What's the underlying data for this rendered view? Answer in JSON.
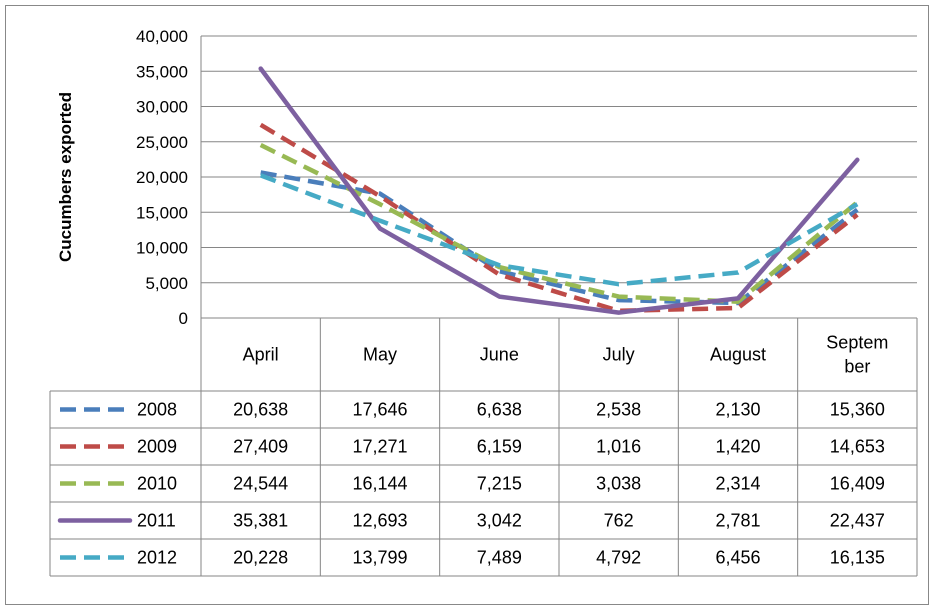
{
  "chart_data": {
    "type": "line",
    "ylabel": "Cucumbers exported",
    "ylim": [
      0,
      40000
    ],
    "y_ticks": [
      "0",
      "5,000",
      "10,000",
      "15,000",
      "20,000",
      "25,000",
      "30,000",
      "35,000",
      "40,000"
    ],
    "y_tick_values": [
      0,
      5000,
      10000,
      15000,
      20000,
      25000,
      30000,
      35000,
      40000
    ],
    "categories": [
      "April",
      "May",
      "June",
      "July",
      "August",
      "September"
    ],
    "category_lines": [
      [
        "April"
      ],
      [
        "May"
      ],
      [
        "June"
      ],
      [
        "July"
      ],
      [
        "August"
      ],
      [
        "Septem",
        "ber"
      ]
    ],
    "grid": true,
    "legend_placement": "data table below plot",
    "series": [
      {
        "name": "2008",
        "color": "#4a7ebb",
        "dash": "dashed",
        "values": [
          20638,
          17646,
          6638,
          2538,
          2130,
          15360
        ],
        "labels": [
          "20,638",
          "17,646",
          "6,638",
          "2,538",
          "2,130",
          "15,360"
        ]
      },
      {
        "name": "2009",
        "color": "#be4b48",
        "dash": "dashed",
        "values": [
          27409,
          17271,
          6159,
          1016,
          1420,
          14653
        ],
        "labels": [
          "27,409",
          "17,271",
          "6,159",
          "1,016",
          "1,420",
          "14,653"
        ]
      },
      {
        "name": "2010",
        "color": "#98b954",
        "dash": "dashed",
        "values": [
          24544,
          16144,
          7215,
          3038,
          2314,
          16409
        ],
        "labels": [
          "24,544",
          "16,144",
          "7,215",
          "3,038",
          "2,314",
          "16,409"
        ]
      },
      {
        "name": "2011",
        "color": "#7d60a0",
        "dash": "solid",
        "values": [
          35381,
          12693,
          3042,
          762,
          2781,
          22437
        ],
        "labels": [
          "35,381",
          "12,693",
          "3,042",
          "762",
          "2,781",
          "22,437"
        ]
      },
      {
        "name": "2012",
        "color": "#46aac5",
        "dash": "dashed",
        "values": [
          20228,
          13799,
          7489,
          4792,
          6456,
          16135
        ],
        "labels": [
          "20,228",
          "13,799",
          "7,489",
          "4,792",
          "6,456",
          "16,135"
        ]
      }
    ]
  }
}
